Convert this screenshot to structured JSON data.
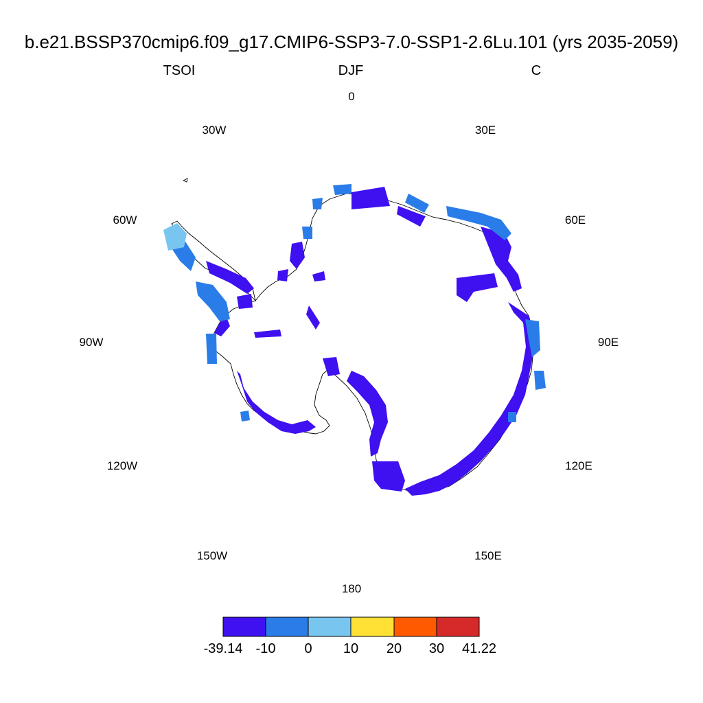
{
  "title": "b.e21.BSSP370cmip6.f09_g17.CMIP6-SSP3-7.0-SSP1-2.6Lu.101 (yrs 2035-2059)",
  "left_label": "TSOI",
  "center_label": "DJF",
  "right_label": "C",
  "longitude_labels": [
    "0",
    "30E",
    "60E",
    "90E",
    "120E",
    "150E",
    "180",
    "150W",
    "120W",
    "90W",
    "60W",
    "30W"
  ],
  "colorbar": {
    "labels": [
      "-39.14",
      "-10",
      "0",
      "10",
      "20",
      "30",
      "41.22"
    ],
    "colors": [
      "#3f10f0",
      "#2a7de8",
      "#78c5f0",
      "#ffe135",
      "#ff5a00",
      "#d62a2a"
    ]
  },
  "colors": {
    "deep_blue": "#3f10f0",
    "mid_blue": "#2a7de8",
    "light_blue": "#78c5f0",
    "coastline": "#000000"
  }
}
